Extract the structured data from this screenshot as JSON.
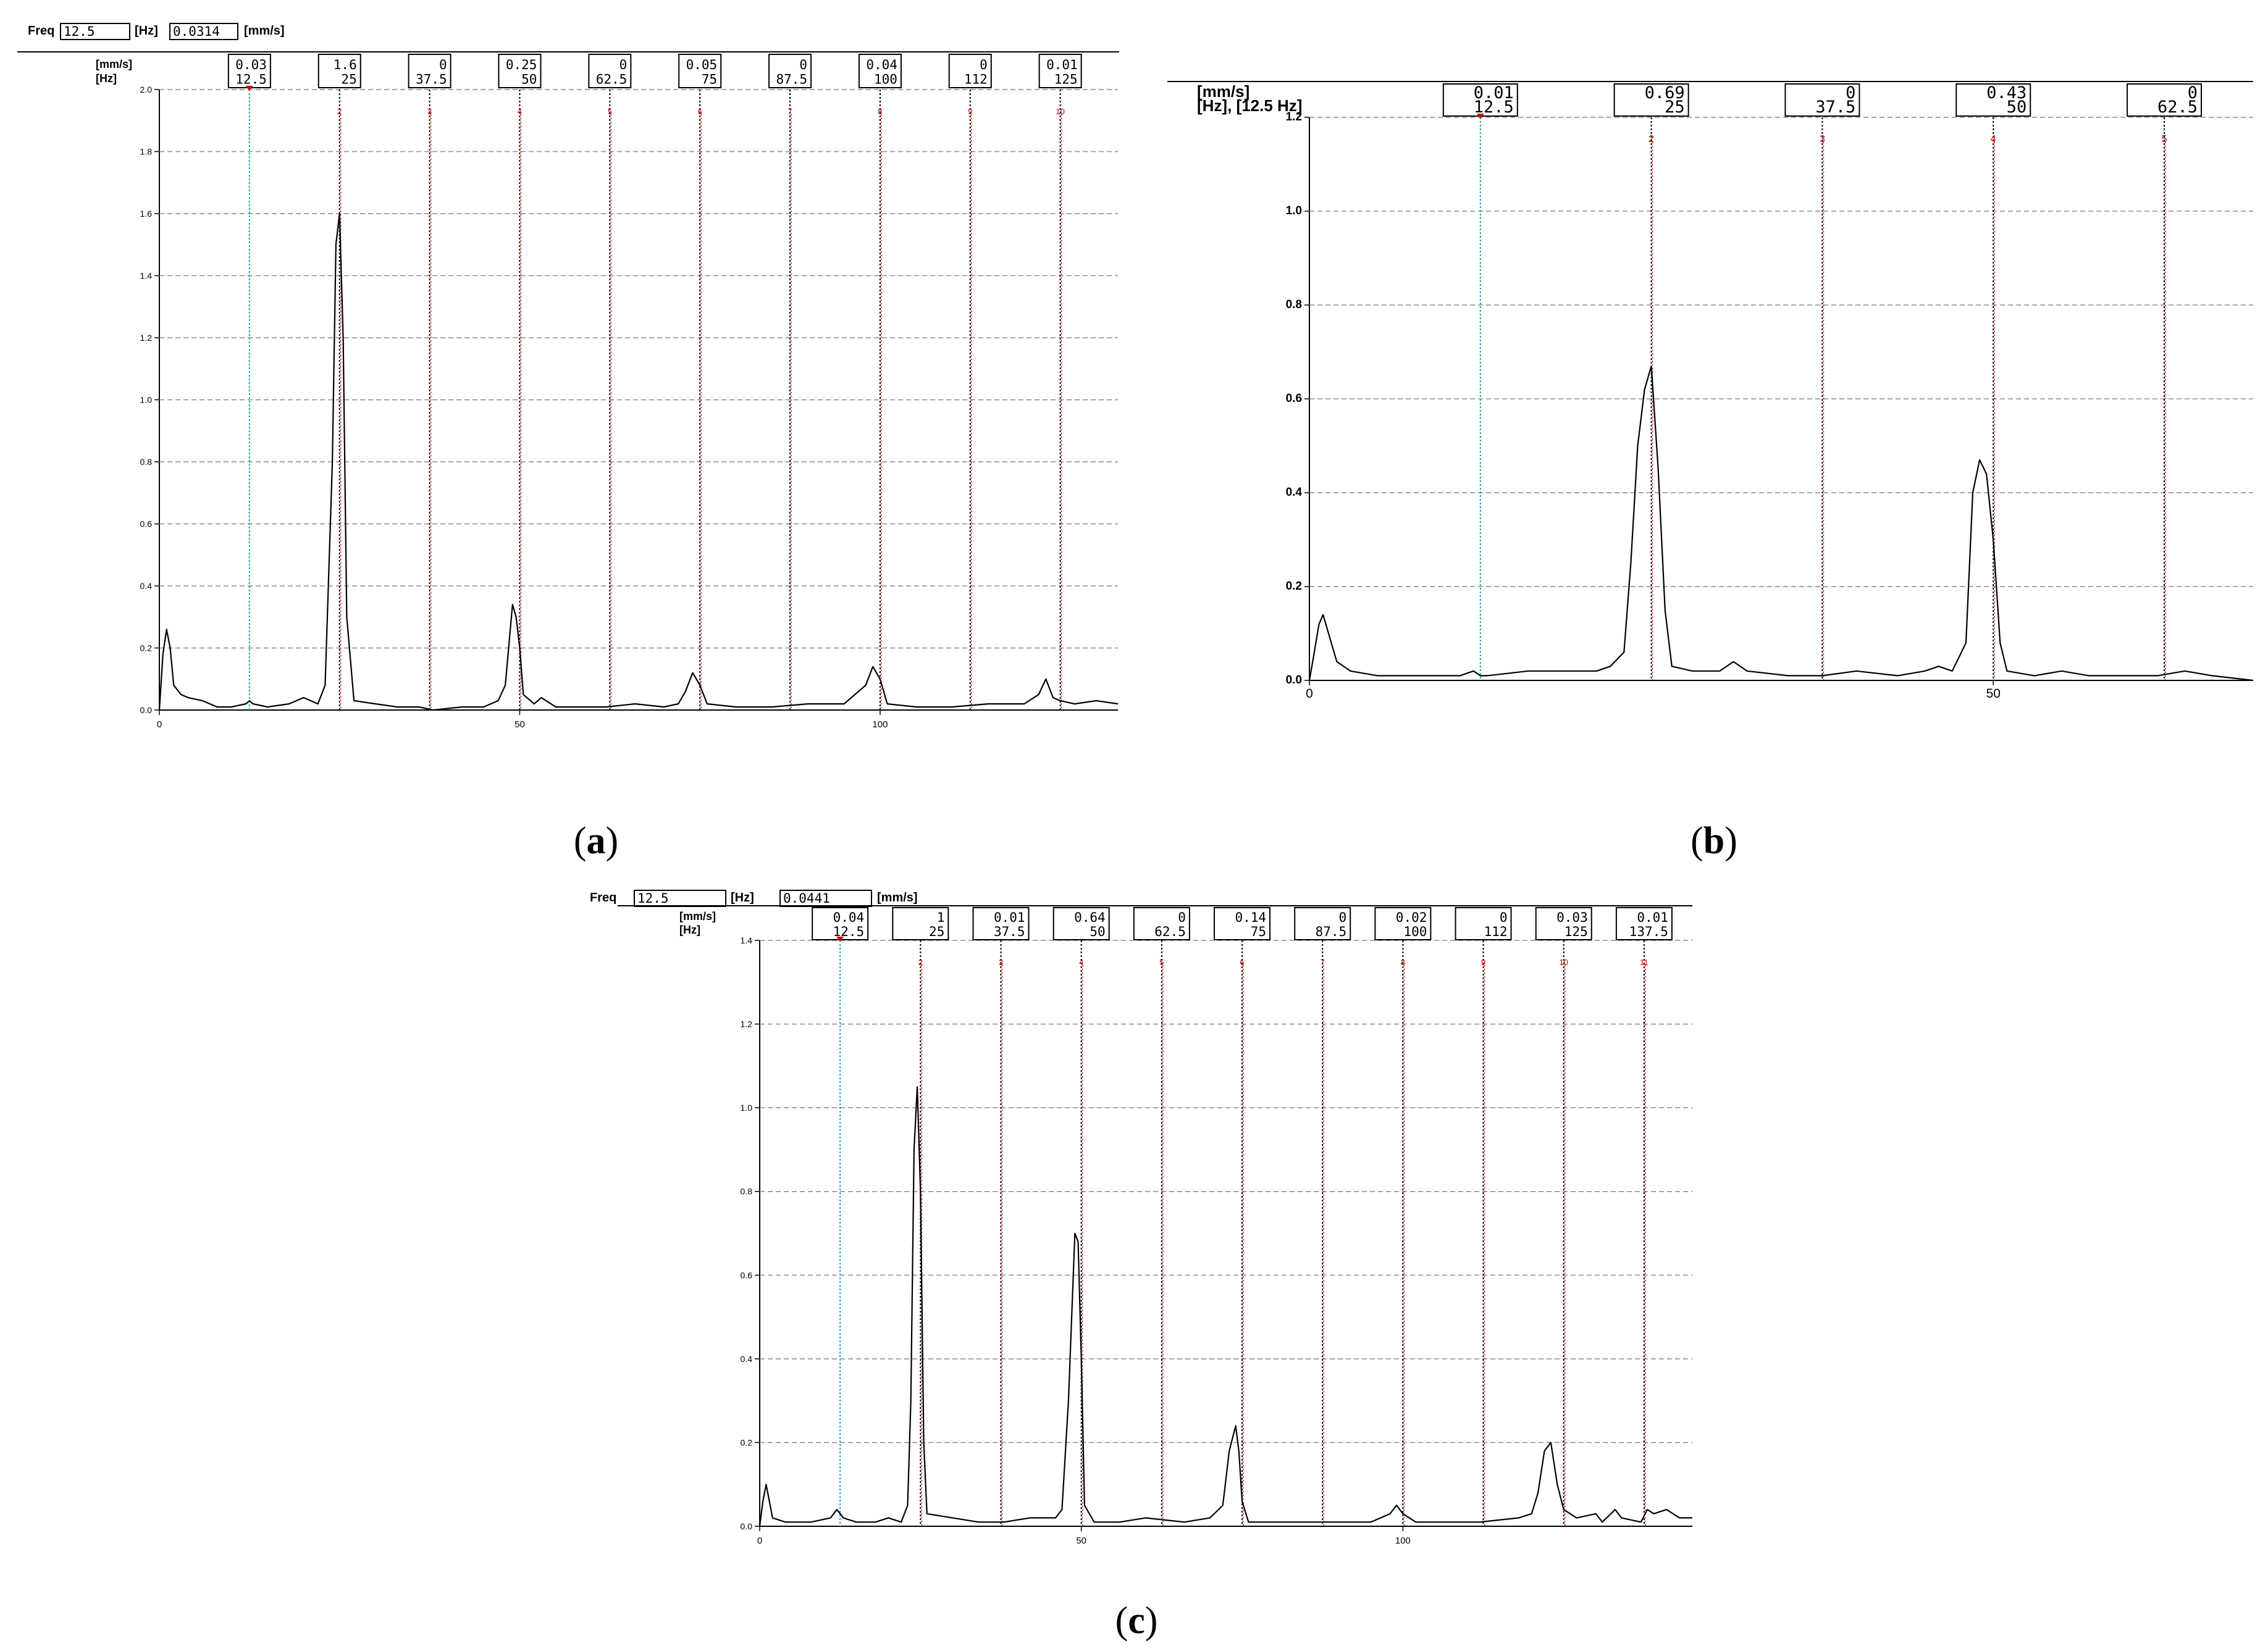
{
  "panels": [
    {
      "id": "a",
      "caption": "a",
      "toolbar": {
        "freq_label": "Freq",
        "freq_value": "12.5",
        "freq_unit": "[Hz]",
        "amp_value": "0.0314",
        "amp_unit": "[mm/s]"
      },
      "units": {
        "amp": "[mm/s]",
        "freq": "[Hz]"
      },
      "xticks": [
        0,
        50,
        100
      ],
      "yticks": [
        "0.0",
        "0.2",
        "0.4",
        "0.6",
        "0.8",
        "1.0",
        "1.2",
        "1.4",
        "1.6",
        "1.8",
        "2.0"
      ],
      "ymax": 2.0,
      "xmax": 133,
      "harmonics": [
        {
          "n": "1",
          "amp": "0.03",
          "freq": "12.5",
          "fx": 12.5
        },
        {
          "n": "2",
          "amp": "1.6",
          "freq": "25",
          "fx": 25
        },
        {
          "n": "3",
          "amp": "0",
          "freq": "37.5",
          "fx": 37.5
        },
        {
          "n": "4",
          "amp": "0.25",
          "freq": "50",
          "fx": 50
        },
        {
          "n": "5",
          "amp": "0",
          "freq": "62.5",
          "fx": 62.5
        },
        {
          "n": "6",
          "amp": "0.05",
          "freq": "75",
          "fx": 75
        },
        {
          "n": "7",
          "amp": "0",
          "freq": "87.5",
          "fx": 87.5
        },
        {
          "n": "8",
          "amp": "0.04",
          "freq": "100",
          "fx": 100
        },
        {
          "n": "9",
          "amp": "0",
          "freq": "112",
          "fx": 112.5
        },
        {
          "n": "10",
          "amp": "0.01",
          "freq": "125",
          "fx": 125
        }
      ],
      "spectrum": [
        [
          0,
          0.0
        ],
        [
          0.5,
          0.18
        ],
        [
          1,
          0.26
        ],
        [
          1.5,
          0.2
        ],
        [
          2,
          0.08
        ],
        [
          3,
          0.05
        ],
        [
          4,
          0.04
        ],
        [
          6,
          0.03
        ],
        [
          8,
          0.01
        ],
        [
          10,
          0.01
        ],
        [
          12,
          0.02
        ],
        [
          12.5,
          0.03
        ],
        [
          13,
          0.02
        ],
        [
          15,
          0.01
        ],
        [
          18,
          0.02
        ],
        [
          20,
          0.04
        ],
        [
          21,
          0.03
        ],
        [
          22,
          0.02
        ],
        [
          23,
          0.08
        ],
        [
          24,
          0.8
        ],
        [
          24.5,
          1.5
        ],
        [
          25,
          1.6
        ],
        [
          25.5,
          1.2
        ],
        [
          26,
          0.3
        ],
        [
          27,
          0.03
        ],
        [
          30,
          0.02
        ],
        [
          33,
          0.01
        ],
        [
          36,
          0.01
        ],
        [
          38,
          0.0
        ],
        [
          42,
          0.01
        ],
        [
          45,
          0.01
        ],
        [
          47,
          0.03
        ],
        [
          48,
          0.08
        ],
        [
          49,
          0.34
        ],
        [
          49.5,
          0.3
        ],
        [
          50,
          0.2
        ],
        [
          50.5,
          0.05
        ],
        [
          52,
          0.02
        ],
        [
          53,
          0.04
        ],
        [
          55,
          0.01
        ],
        [
          58,
          0.01
        ],
        [
          62,
          0.01
        ],
        [
          66,
          0.02
        ],
        [
          70,
          0.01
        ],
        [
          72,
          0.02
        ],
        [
          73,
          0.06
        ],
        [
          74,
          0.12
        ],
        [
          75,
          0.08
        ],
        [
          76,
          0.02
        ],
        [
          80,
          0.01
        ],
        [
          85,
          0.01
        ],
        [
          90,
          0.02
        ],
        [
          95,
          0.02
        ],
        [
          98,
          0.08
        ],
        [
          99,
          0.14
        ],
        [
          100,
          0.1
        ],
        [
          101,
          0.02
        ],
        [
          105,
          0.01
        ],
        [
          110,
          0.01
        ],
        [
          115,
          0.02
        ],
        [
          120,
          0.02
        ],
        [
          122,
          0.05
        ],
        [
          123,
          0.1
        ],
        [
          124,
          0.04
        ],
        [
          125,
          0.03
        ],
        [
          127,
          0.02
        ],
        [
          130,
          0.03
        ],
        [
          133,
          0.02
        ]
      ]
    },
    {
      "id": "b",
      "caption": "b",
      "units": {
        "amp": "[mm/s]",
        "freq": "[Hz], [12.5 Hz]"
      },
      "xticks": [
        0,
        50
      ],
      "yticks": [
        "0.0",
        "0.2",
        "0.4",
        "0.6",
        "0.8",
        "1.0",
        "1.2"
      ],
      "ymax": 1.2,
      "xmax": 69,
      "harmonics": [
        {
          "n": "1",
          "amp": "0.01",
          "freq": "12.5",
          "fx": 12.5
        },
        {
          "n": "2",
          "amp": "0.69",
          "freq": "25",
          "fx": 25
        },
        {
          "n": "3",
          "amp": "0",
          "freq": "37.5",
          "fx": 37.5
        },
        {
          "n": "4",
          "amp": "0.43",
          "freq": "50",
          "fx": 50
        },
        {
          "n": "5",
          "amp": "0",
          "freq": "62.5",
          "fx": 62.5
        }
      ],
      "spectrum": [
        [
          0,
          0.0
        ],
        [
          0.3,
          0.05
        ],
        [
          0.7,
          0.12
        ],
        [
          1,
          0.14
        ],
        [
          1.5,
          0.09
        ],
        [
          2,
          0.04
        ],
        [
          3,
          0.02
        ],
        [
          5,
          0.01
        ],
        [
          8,
          0.01
        ],
        [
          11,
          0.01
        ],
        [
          12,
          0.02
        ],
        [
          12.5,
          0.01
        ],
        [
          13,
          0.01
        ],
        [
          16,
          0.02
        ],
        [
          19,
          0.02
        ],
        [
          21,
          0.02
        ],
        [
          22,
          0.03
        ],
        [
          23,
          0.06
        ],
        [
          23.5,
          0.25
        ],
        [
          24,
          0.5
        ],
        [
          24.5,
          0.62
        ],
        [
          25,
          0.67
        ],
        [
          25.5,
          0.45
        ],
        [
          26,
          0.15
        ],
        [
          26.5,
          0.03
        ],
        [
          28,
          0.02
        ],
        [
          30,
          0.02
        ],
        [
          31,
          0.04
        ],
        [
          32,
          0.02
        ],
        [
          35,
          0.01
        ],
        [
          37.5,
          0.01
        ],
        [
          40,
          0.02
        ],
        [
          43,
          0.01
        ],
        [
          45,
          0.02
        ],
        [
          46,
          0.03
        ],
        [
          47,
          0.02
        ],
        [
          48,
          0.08
        ],
        [
          48.5,
          0.4
        ],
        [
          49,
          0.47
        ],
        [
          49.5,
          0.44
        ],
        [
          50,
          0.3
        ],
        [
          50.5,
          0.08
        ],
        [
          51,
          0.02
        ],
        [
          53,
          0.01
        ],
        [
          55,
          0.02
        ],
        [
          57,
          0.01
        ],
        [
          60,
          0.01
        ],
        [
          62,
          0.01
        ],
        [
          64,
          0.02
        ],
        [
          66,
          0.01
        ],
        [
          69,
          0.0
        ]
      ]
    },
    {
      "id": "c",
      "caption": "c",
      "toolbar": {
        "freq_label": "Freq",
        "freq_value": "12.5",
        "freq_unit": "[Hz]",
        "amp_value": "0.0441",
        "amp_unit": "[mm/s]"
      },
      "units": {
        "amp": "[mm/s]",
        "freq": "[Hz]"
      },
      "xticks": [
        0,
        50,
        100
      ],
      "yticks": [
        "0.0",
        "0.2",
        "0.4",
        "0.6",
        "0.8",
        "1.0",
        "1.2",
        "1.4"
      ],
      "ymax": 1.4,
      "xmax": 145,
      "harmonics": [
        {
          "n": "1",
          "amp": "0.04",
          "freq": "12.5",
          "fx": 12.5
        },
        {
          "n": "2",
          "amp": "1",
          "freq": "25",
          "fx": 25
        },
        {
          "n": "3",
          "amp": "0.01",
          "freq": "37.5",
          "fx": 37.5
        },
        {
          "n": "4",
          "amp": "0.64",
          "freq": "50",
          "fx": 50
        },
        {
          "n": "5",
          "amp": "0",
          "freq": "62.5",
          "fx": 62.5
        },
        {
          "n": "6",
          "amp": "0.14",
          "freq": "75",
          "fx": 75
        },
        {
          "n": "7",
          "amp": "0",
          "freq": "87.5",
          "fx": 87.5
        },
        {
          "n": "8",
          "amp": "0.02",
          "freq": "100",
          "fx": 100
        },
        {
          "n": "9",
          "amp": "0",
          "freq": "112",
          "fx": 112.5
        },
        {
          "n": "10",
          "amp": "0.03",
          "freq": "125",
          "fx": 125
        },
        {
          "n": "11",
          "amp": "0.01",
          "freq": "137.5",
          "fx": 137.5
        }
      ],
      "spectrum": [
        [
          0,
          0.0
        ],
        [
          0.5,
          0.06
        ],
        [
          1,
          0.1
        ],
        [
          1.5,
          0.06
        ],
        [
          2,
          0.02
        ],
        [
          4,
          0.01
        ],
        [
          8,
          0.01
        ],
        [
          11,
          0.02
        ],
        [
          12,
          0.04
        ],
        [
          13,
          0.02
        ],
        [
          15,
          0.01
        ],
        [
          18,
          0.01
        ],
        [
          20,
          0.02
        ],
        [
          22,
          0.01
        ],
        [
          23,
          0.05
        ],
        [
          23.5,
          0.3
        ],
        [
          24,
          0.9
        ],
        [
          24.5,
          1.05
        ],
        [
          25,
          0.8
        ],
        [
          25.5,
          0.2
        ],
        [
          26,
          0.03
        ],
        [
          30,
          0.02
        ],
        [
          34,
          0.01
        ],
        [
          38,
          0.01
        ],
        [
          42,
          0.02
        ],
        [
          46,
          0.02
        ],
        [
          47,
          0.04
        ],
        [
          48,
          0.3
        ],
        [
          49,
          0.7
        ],
        [
          49.5,
          0.68
        ],
        [
          50,
          0.4
        ],
        [
          50.5,
          0.05
        ],
        [
          52,
          0.01
        ],
        [
          56,
          0.01
        ],
        [
          60,
          0.02
        ],
        [
          66,
          0.01
        ],
        [
          70,
          0.02
        ],
        [
          72,
          0.05
        ],
        [
          73,
          0.18
        ],
        [
          74,
          0.24
        ],
        [
          74.5,
          0.18
        ],
        [
          75,
          0.06
        ],
        [
          76,
          0.01
        ],
        [
          80,
          0.01
        ],
        [
          85,
          0.01
        ],
        [
          90,
          0.01
        ],
        [
          95,
          0.01
        ],
        [
          98,
          0.03
        ],
        [
          99,
          0.05
        ],
        [
          100,
          0.03
        ],
        [
          102,
          0.01
        ],
        [
          108,
          0.01
        ],
        [
          112,
          0.01
        ],
        [
          118,
          0.02
        ],
        [
          120,
          0.03
        ],
        [
          121,
          0.08
        ],
        [
          122,
          0.18
        ],
        [
          123,
          0.2
        ],
        [
          124,
          0.1
        ],
        [
          125,
          0.04
        ],
        [
          127,
          0.02
        ],
        [
          130,
          0.03
        ],
        [
          131,
          0.01
        ],
        [
          133,
          0.04
        ],
        [
          134,
          0.02
        ],
        [
          137,
          0.01
        ],
        [
          138,
          0.04
        ],
        [
          139,
          0.03
        ],
        [
          141,
          0.04
        ],
        [
          143,
          0.02
        ],
        [
          145,
          0.02
        ]
      ]
    }
  ],
  "chart_data": [
    {
      "type": "line",
      "panel": "a",
      "xlabel": "[Hz]",
      "ylabel": "[mm/s]",
      "xlim": [
        0,
        133
      ],
      "ylim": [
        0,
        2.0
      ],
      "grid": true,
      "harmonic_freqs_hz": [
        "12.5",
        "25",
        "37.5",
        "50",
        "62.5",
        "75",
        "87.5",
        "100",
        "112",
        "125"
      ],
      "harmonic_amps_mms": [
        "0.03",
        "1.6",
        "0",
        "0.25",
        "0",
        "0.05",
        "0",
        "0.04",
        "0",
        "0.01"
      ]
    },
    {
      "type": "line",
      "panel": "b",
      "xlabel": "[Hz], [12.5 Hz]",
      "ylabel": "[mm/s]",
      "xlim": [
        0,
        69
      ],
      "ylim": [
        0,
        1.2
      ],
      "grid": true,
      "harmonic_freqs_hz": [
        "12.5",
        "25",
        "37.5",
        "50",
        "62.5"
      ],
      "harmonic_amps_mms": [
        "0.01",
        "0.69",
        "0",
        "0.43",
        "0"
      ]
    },
    {
      "type": "line",
      "panel": "c",
      "xlabel": "[Hz]",
      "ylabel": "[mm/s]",
      "xlim": [
        0,
        145
      ],
      "ylim": [
        0,
        1.4
      ],
      "grid": true,
      "harmonic_freqs_hz": [
        "12.5",
        "25",
        "37.5",
        "50",
        "62.5",
        "75",
        "87.5",
        "100",
        "112",
        "125",
        "137.5"
      ],
      "harmonic_amps_mms": [
        "0.04",
        "1",
        "0.01",
        "0.64",
        "0",
        "0.14",
        "0",
        "0.02",
        "0",
        "0.03",
        "0.01"
      ]
    }
  ],
  "colors": {
    "spectrum": "#000000",
    "cursor_main": "#16a6b8",
    "cursor_harm": "#000000",
    "harm_red": "#d00000",
    "grid": "#808080"
  }
}
